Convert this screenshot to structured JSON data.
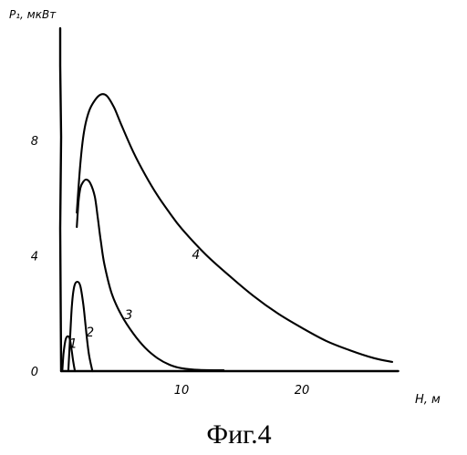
{
  "chart_data": {
    "type": "line",
    "title": "",
    "xlabel": "H, м",
    "ylabel": "P₁, мкВт",
    "xlim": [
      0,
      27
    ],
    "ylim": [
      0,
      10
    ],
    "x_ticks": [
      {
        "value": 10,
        "label": "10"
      },
      {
        "value": 20,
        "label": "20"
      }
    ],
    "y_ticks": [
      {
        "value": 0,
        "label": "0"
      },
      {
        "value": 4,
        "label": "4"
      },
      {
        "value": 8,
        "label": "8"
      }
    ],
    "grid": false,
    "legend": "none",
    "series": [
      {
        "label": "1",
        "label_at": [
          1.0,
          0.8
        ],
        "x": [
          0.1,
          0.2,
          0.35,
          0.5,
          0.7,
          0.85,
          1.0,
          1.15
        ],
        "y": [
          0.0,
          0.6,
          1.05,
          1.2,
          1.15,
          0.8,
          0.35,
          0.0
        ]
      },
      {
        "label": "2",
        "label_at": [
          2.4,
          1.2
        ],
        "x": [
          0.6,
          0.75,
          0.9,
          1.1,
          1.35,
          1.6,
          1.85,
          2.05,
          2.3,
          2.6
        ],
        "y": [
          0.0,
          1.2,
          2.3,
          2.95,
          3.1,
          2.95,
          2.3,
          1.5,
          0.6,
          0.0
        ]
      },
      {
        "label": "3",
        "label_at": [
          5.6,
          1.8
        ],
        "x": [
          1.3,
          1.45,
          1.6,
          1.8,
          2.1,
          2.45,
          2.8,
          3.05,
          3.3,
          3.6,
          4.2,
          5.0,
          6.0,
          7.0,
          8.0,
          9.0,
          10.0,
          11.5,
          13.5
        ],
        "y": [
          5.0,
          5.9,
          6.35,
          6.55,
          6.65,
          6.5,
          6.05,
          5.3,
          4.5,
          3.7,
          2.7,
          1.95,
          1.3,
          0.8,
          0.45,
          0.22,
          0.1,
          0.04,
          0.03
        ]
      },
      {
        "label": "4",
        "label_at": [
          11.2,
          3.9
        ],
        "x": [
          1.3,
          1.6,
          1.9,
          2.3,
          2.8,
          3.3,
          3.8,
          4.4,
          5.0,
          6.0,
          7.0,
          8.0,
          9.0,
          10.0,
          12.0,
          14.0,
          16.0,
          18.0,
          20.0,
          22.0,
          24.0,
          26.0,
          27.5
        ],
        "y": [
          5.5,
          7.2,
          8.3,
          9.0,
          9.4,
          9.6,
          9.55,
          9.15,
          8.55,
          7.6,
          6.8,
          6.1,
          5.5,
          4.95,
          4.05,
          3.3,
          2.6,
          2.0,
          1.5,
          1.05,
          0.72,
          0.45,
          0.32
        ]
      }
    ]
  },
  "figure_caption": "Фиг.4"
}
